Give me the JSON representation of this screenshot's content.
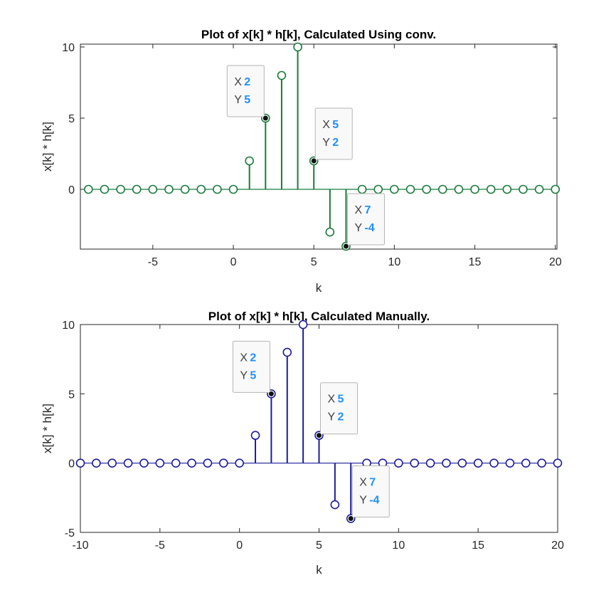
{
  "colors": {
    "background": "#ffffff",
    "axes": "#262626",
    "datatip_value": "#1e90ff",
    "datatip_bg": "#f9f9f9",
    "datatip_border": "#b4b4b4"
  },
  "chart_data": [
    {
      "type": "stem",
      "title": "Plot of x[k] * h[k], Calculated Using conv.",
      "xlabel": "k",
      "ylabel": "x[k] * h[k]",
      "xlim": [
        -9.5,
        20.1
      ],
      "ylim": [
        -4.2,
        10.2
      ],
      "xticks": [
        -5,
        0,
        5,
        10,
        15,
        20
      ],
      "yticks": [
        0,
        5,
        10
      ],
      "xticklabels": [
        "-5",
        "0",
        "5",
        "10",
        "15",
        "20"
      ],
      "yticklabels": [
        "0",
        "5",
        "10"
      ],
      "grid": false,
      "series": [
        {
          "color": "#1a7a3a",
          "x": [
            -9,
            -8,
            -7,
            -6,
            -5,
            -4,
            -3,
            -2,
            -1,
            0,
            1,
            2,
            3,
            4,
            5,
            6,
            7,
            8,
            9,
            10,
            11,
            12,
            13,
            14,
            15,
            16,
            17,
            18,
            19,
            20
          ],
          "y": [
            0,
            0,
            0,
            0,
            0,
            0,
            0,
            0,
            0,
            0,
            2,
            5,
            8,
            10,
            2,
            -3,
            -4,
            0,
            0,
            0,
            0,
            0,
            0,
            0,
            0,
            0,
            0,
            0,
            0,
            0
          ]
        }
      ],
      "datatips": [
        {
          "x": 2,
          "y": 5,
          "x_label": "X",
          "y_label": "Y",
          "x_value": "2",
          "y_value": "5",
          "placement": "top-left"
        },
        {
          "x": 5,
          "y": 2,
          "x_label": "X",
          "y_label": "Y",
          "x_value": "5",
          "y_value": "2",
          "placement": "top-right"
        },
        {
          "x": 7,
          "y": -4,
          "x_label": "X",
          "y_label": "Y",
          "x_value": "7",
          "y_value": "-4",
          "placement": "top-right"
        }
      ]
    },
    {
      "type": "stem",
      "title": "Plot of x[k] * h[k], Calculated Manually.",
      "xlabel": "k",
      "ylabel": "x[k] * h[k]",
      "xlim": [
        -10,
        20
      ],
      "ylim": [
        -5,
        10
      ],
      "xticks": [
        -10,
        -5,
        0,
        5,
        10,
        15,
        20
      ],
      "yticks": [
        -5,
        0,
        5,
        10
      ],
      "xticklabels": [
        "-10",
        "-5",
        "0",
        "5",
        "10",
        "15",
        "20"
      ],
      "yticklabels": [
        "-5",
        "0",
        "5",
        "10"
      ],
      "grid": false,
      "series": [
        {
          "color": "#1c1c9c",
          "x": [
            -10,
            -9,
            -8,
            -7,
            -6,
            -5,
            -4,
            -3,
            -2,
            -1,
            0,
            1,
            2,
            3,
            4,
            5,
            6,
            7,
            8,
            9,
            10,
            11,
            12,
            13,
            14,
            15,
            16,
            17,
            18,
            19,
            20
          ],
          "y": [
            0,
            0,
            0,
            0,
            0,
            0,
            0,
            0,
            0,
            0,
            0,
            2,
            5,
            8,
            10,
            2,
            -3,
            -4,
            0,
            0,
            0,
            0,
            0,
            0,
            0,
            0,
            0,
            0,
            0,
            0,
            0
          ]
        }
      ],
      "datatips": [
        {
          "x": 2,
          "y": 5,
          "x_label": "X",
          "y_label": "Y",
          "x_value": "2",
          "y_value": "5",
          "placement": "top-left"
        },
        {
          "x": 5,
          "y": 2,
          "x_label": "X",
          "y_label": "Y",
          "x_value": "5",
          "y_value": "2",
          "placement": "top-right"
        },
        {
          "x": 7,
          "y": -4,
          "x_label": "X",
          "y_label": "Y",
          "x_value": "7",
          "y_value": "-4",
          "placement": "top-right"
        }
      ]
    }
  ]
}
